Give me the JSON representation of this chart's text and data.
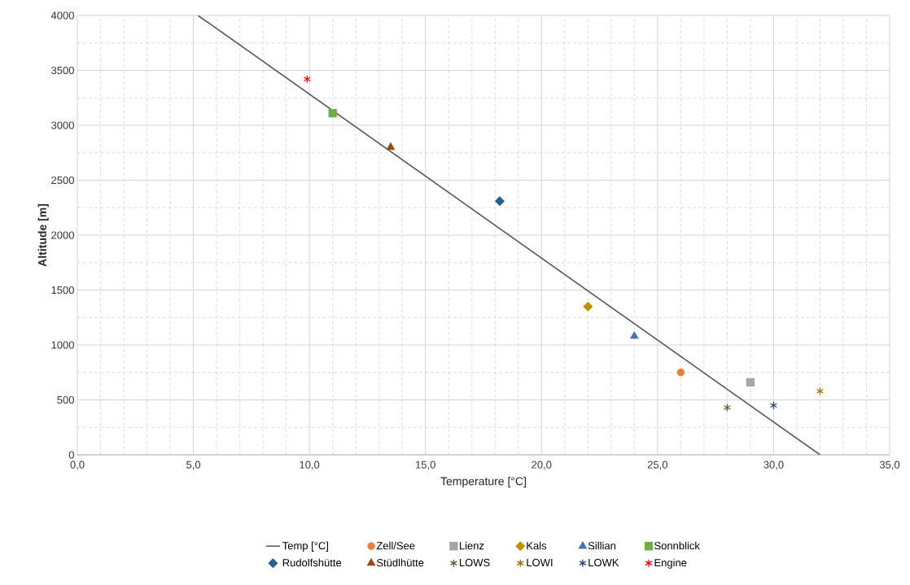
{
  "chart_data": {
    "type": "scatter",
    "xlabel": "Temperature [°C]",
    "ylabel": "Altitude [m]",
    "xlim": [
      0,
      35
    ],
    "ylim": [
      0,
      4000
    ],
    "xticks": [
      {
        "value": 0,
        "label": "0,0"
      },
      {
        "value": 5,
        "label": "5,0"
      },
      {
        "value": 10,
        "label": "10,0"
      },
      {
        "value": 15,
        "label": "15,0"
      },
      {
        "value": 20,
        "label": "20,0"
      },
      {
        "value": 25,
        "label": "25,0"
      },
      {
        "value": 30,
        "label": "30,0"
      },
      {
        "value": 35,
        "label": "35,0"
      }
    ],
    "yticks": [
      0,
      500,
      1000,
      1500,
      2000,
      2500,
      3000,
      3500,
      4000
    ],
    "grid": true,
    "legend": "bottom",
    "series": [
      {
        "name": "Temp [°C]",
        "type": "line",
        "marker": "none",
        "color": "#595959",
        "x": [
          5.2,
          32
        ],
        "values": [
          4000,
          0
        ]
      },
      {
        "name": "Zell/See",
        "marker": "circle",
        "color": "#ed7d31",
        "x": [
          26
        ],
        "values": [
          750
        ]
      },
      {
        "name": "Lienz",
        "marker": "square",
        "color": "#a5a5a5",
        "x": [
          29
        ],
        "values": [
          660
        ]
      },
      {
        "name": "Kals",
        "marker": "diamond",
        "color": "#bf9000",
        "x": [
          22
        ],
        "values": [
          1350
        ]
      },
      {
        "name": "Sillian",
        "marker": "triangle",
        "color": "#4472c4",
        "x": [
          24
        ],
        "values": [
          1080
        ]
      },
      {
        "name": "Sonnblick",
        "marker": "square",
        "color": "#70ad47",
        "x": [
          11
        ],
        "values": [
          3110
        ]
      },
      {
        "name": "Rudolfshütte",
        "marker": "diamond",
        "color": "#255e91",
        "x": [
          18.2
        ],
        "values": [
          2310
        ]
      },
      {
        "name": "Stüdlhütte",
        "marker": "triangle",
        "color": "#9e480e",
        "x": [
          13.5
        ],
        "values": [
          2800
        ]
      },
      {
        "name": "LOWS",
        "marker": "cross",
        "color": "#43682b",
        "x": [
          28
        ],
        "values": [
          430
        ]
      },
      {
        "name": "LOWI",
        "marker": "cross",
        "color": "#997300",
        "x": [
          32
        ],
        "values": [
          580
        ]
      },
      {
        "name": "LOWK",
        "marker": "cross",
        "color": "#264478",
        "x": [
          30
        ],
        "values": [
          450
        ]
      },
      {
        "name": "Engine",
        "marker": "cross",
        "color": "#ff0000",
        "x": [
          9.9
        ],
        "values": [
          3420
        ]
      }
    ]
  }
}
